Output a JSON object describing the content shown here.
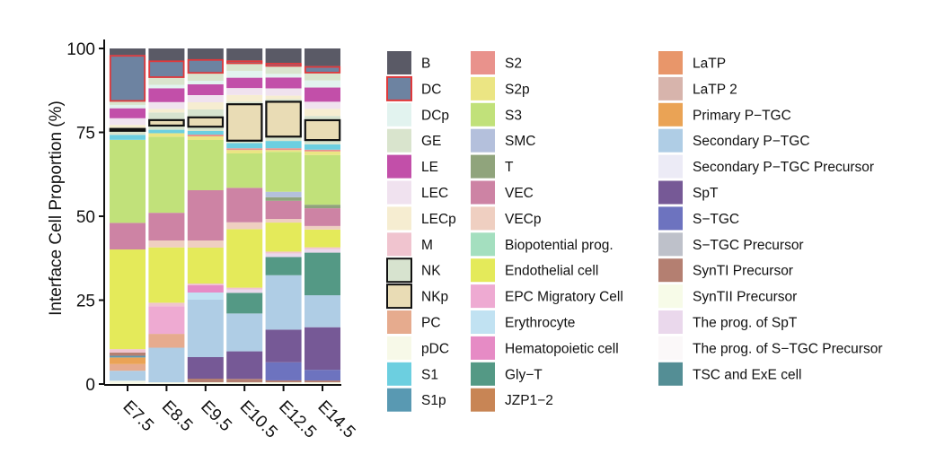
{
  "chart_data": {
    "type": "stacked-bar",
    "ylabel": "Interface Cell Proportion (%)",
    "xlabel": "",
    "ylim": [
      0,
      100
    ],
    "yticks": [
      0,
      25,
      50,
      75,
      100
    ],
    "categories": [
      "E7.5",
      "E8.5",
      "E9.5",
      "E10.5",
      "E12.5",
      "E14.5"
    ],
    "legend": [
      {
        "name": "B",
        "color": "#5a5a66"
      },
      {
        "name": "DC",
        "color": "#6d83a1"
      },
      {
        "name": "DCp",
        "color": "#e2f3ef"
      },
      {
        "name": "GE",
        "color": "#d9e4cd"
      },
      {
        "name": "LE",
        "color": "#c24fa9"
      },
      {
        "name": "LEC",
        "color": "#f0e2ef"
      },
      {
        "name": "LECp",
        "color": "#f6edd1"
      },
      {
        "name": "M",
        "color": "#f0c4cf"
      },
      {
        "name": "NK",
        "color": "#d7e3cf"
      },
      {
        "name": "NKp",
        "color": "#e9dcb5"
      },
      {
        "name": "PC",
        "color": "#e6ab8e"
      },
      {
        "name": "pDC",
        "color": "#f7f9e8"
      },
      {
        "name": "S1",
        "color": "#6ccfe0"
      },
      {
        "name": "S1p",
        "color": "#5999b2"
      },
      {
        "name": "S2",
        "color": "#e9928c"
      },
      {
        "name": "S2p",
        "color": "#ebe583"
      },
      {
        "name": "S3",
        "color": "#c1e17a"
      },
      {
        "name": "SMC",
        "color": "#b4c0dc"
      },
      {
        "name": "T",
        "color": "#90a47c"
      },
      {
        "name": "VEC",
        "color": "#cd83a4"
      },
      {
        "name": "VECp",
        "color": "#efcfc1"
      },
      {
        "name": "Biopotential prog.",
        "color": "#a4dfbf"
      },
      {
        "name": "Endothelial cell",
        "color": "#e4ea5a"
      },
      {
        "name": "EPC Migratory Cell",
        "color": "#eeaad2"
      },
      {
        "name": "Erythrocyte",
        "color": "#c1e2f2"
      },
      {
        "name": "Hematopoietic cell",
        "color": "#e68bc5"
      },
      {
        "name": "Gly−T",
        "color": "#549985"
      },
      {
        "name": "JZP1−2",
        "color": "#c88555"
      },
      {
        "name": "LaTP",
        "color": "#e8966a"
      },
      {
        "name": "LaTP 2",
        "color": "#d7b4ac"
      },
      {
        "name": "Primary P−TGC",
        "color": "#eaa355"
      },
      {
        "name": "Secondary P−TGC",
        "color": "#afcde5"
      },
      {
        "name": "Secondary P−TGC Precursor",
        "color": "#ecebf6"
      },
      {
        "name": "SpT",
        "color": "#765996"
      },
      {
        "name": "S−TGC",
        "color": "#6d73bf"
      },
      {
        "name": "S−TGC Precursor",
        "color": "#bec1ca"
      },
      {
        "name": "SynTI Precursor",
        "color": "#b47f71"
      },
      {
        "name": "SynTII Precursor",
        "color": "#f7fbe8"
      },
      {
        "name": "The prog. of SpT",
        "color": "#ead8ec"
      },
      {
        "name": "The prog. of S−TGC Precursor",
        "color": "#fbf8f9"
      },
      {
        "name": "TSC and ExE cell",
        "color": "#548e95"
      }
    ],
    "highlighted_legend": {
      "DC": "red",
      "NK": "black",
      "NKp": "black"
    },
    "series": [
      {
        "name": "pDC",
        "values": [
          1,
          0.5,
          0.5,
          0.5,
          0.5,
          0.5
        ]
      },
      {
        "name": "Secondary P−TGC",
        "values": [
          3,
          10,
          0,
          0,
          0,
          0
        ]
      },
      {
        "name": "PC",
        "values": [
          2,
          4,
          0,
          0,
          0,
          0
        ]
      },
      {
        "name": "Primary P−TGC",
        "values": [
          2,
          0,
          0,
          0,
          0,
          0
        ]
      },
      {
        "name": "S1p",
        "values": [
          0.5,
          0,
          0,
          0,
          0,
          0
        ]
      },
      {
        "name": "SynTI Precursor",
        "values": [
          1,
          0,
          1,
          1,
          0.5,
          0.5
        ]
      },
      {
        "name": "S−TGC",
        "values": [
          0,
          0,
          0,
          0,
          5,
          3
        ]
      },
      {
        "name": "SpT",
        "values": [
          0,
          0,
          6,
          8,
          9,
          12
        ]
      },
      {
        "name": "Secondary P−TGC",
        "values": [
          0,
          0,
          16,
          11,
          15,
          9
        ]
      },
      {
        "name": "EPC Migratory Cell",
        "values": [
          0,
          8,
          0,
          0,
          0,
          0
        ]
      },
      {
        "name": "Gly−T",
        "values": [
          0,
          0,
          0,
          6,
          5,
          12
        ]
      },
      {
        "name": "Erythrocyte",
        "values": [
          0,
          0,
          2,
          0,
          0,
          0
        ]
      },
      {
        "name": "Hematopoietic cell",
        "values": [
          0,
          0,
          2,
          0,
          0,
          0
        ]
      },
      {
        "name": "The prog. of SpT",
        "values": [
          0,
          0,
          0,
          1,
          1,
          1
        ]
      },
      {
        "name": "M",
        "values": [
          1,
          1,
          0.5,
          0.5,
          0.5,
          0.5
        ]
      },
      {
        "name": "Endothelial cell",
        "values": [
          30,
          16,
          10,
          17,
          8,
          5
        ]
      },
      {
        "name": "EPC Migratory Cell",
        "values": [
          0,
          0,
          0,
          0,
          0,
          0
        ]
      },
      {
        "name": "VECp",
        "values": [
          0,
          2,
          2,
          2,
          1,
          1
        ]
      },
      {
        "name": "VEC",
        "values": [
          8,
          8,
          14,
          10,
          5,
          5
        ]
      },
      {
        "name": "T",
        "values": [
          0,
          0,
          0,
          0,
          1,
          1
        ]
      },
      {
        "name": "SMC",
        "values": [
          0,
          0,
          0,
          0,
          1.5,
          0
        ]
      },
      {
        "name": "S3",
        "values": [
          25,
          22,
          14,
          10,
          11,
          14
        ]
      },
      {
        "name": "S2p",
        "values": [
          0,
          1,
          1,
          1,
          0.5,
          1
        ]
      },
      {
        "name": "S2",
        "values": [
          0,
          0,
          0.5,
          0.5,
          0.5,
          0.5
        ]
      },
      {
        "name": "S1",
        "values": [
          1.5,
          1,
          1,
          1.5,
          2,
          1.5
        ]
      },
      {
        "name": "GE",
        "values": [
          1,
          1,
          1,
          0.5,
          1,
          1
        ]
      },
      {
        "name": "NKp",
        "values": [
          0,
          2,
          3,
          11,
          10,
          6
        ]
      },
      {
        "name": "NK",
        "values": [
          1,
          2,
          2,
          0.5,
          0.5,
          1
        ]
      },
      {
        "name": "LECp",
        "values": [
          1,
          1,
          2,
          2,
          1,
          2
        ]
      },
      {
        "name": "LEC",
        "values": [
          2,
          2,
          2,
          2,
          2,
          2
        ]
      },
      {
        "name": "LE",
        "values": [
          3,
          4,
          3,
          3,
          3,
          4
        ]
      },
      {
        "name": "DCp",
        "values": [
          1,
          1,
          1,
          2,
          1,
          2
        ]
      },
      {
        "name": "GE",
        "values": [
          1,
          2,
          2,
          2,
          2,
          2
        ]
      },
      {
        "name": "DC",
        "values": [
          14,
          5,
          4,
          1,
          1,
          2
        ]
      },
      {
        "name": "B",
        "values": [
          2,
          3.5,
          3,
          3.5,
          4,
          5
        ]
      }
    ],
    "bar_outlines": [
      {
        "category": "E7.5",
        "series": "DC",
        "color": "red"
      },
      {
        "category": "E8.5",
        "series": "DC",
        "color": "red"
      },
      {
        "category": "E9.5",
        "series": "DC",
        "color": "red"
      },
      {
        "category": "E10.5",
        "series": "DC",
        "color": "red"
      },
      {
        "category": "E12.5",
        "series": "DC",
        "color": "red"
      },
      {
        "category": "E14.5",
        "series": "DC",
        "color": "red"
      },
      {
        "category": "E7.5",
        "series": "NK",
        "color": "black"
      },
      {
        "category": "E8.5",
        "series": "NKp",
        "color": "black"
      },
      {
        "category": "E9.5",
        "series": "NKp",
        "color": "black"
      },
      {
        "category": "E10.5",
        "series": "NKp",
        "color": "black"
      },
      {
        "category": "E12.5",
        "series": "NKp",
        "color": "black"
      },
      {
        "category": "E14.5",
        "series": "NKp",
        "color": "black"
      }
    ]
  }
}
